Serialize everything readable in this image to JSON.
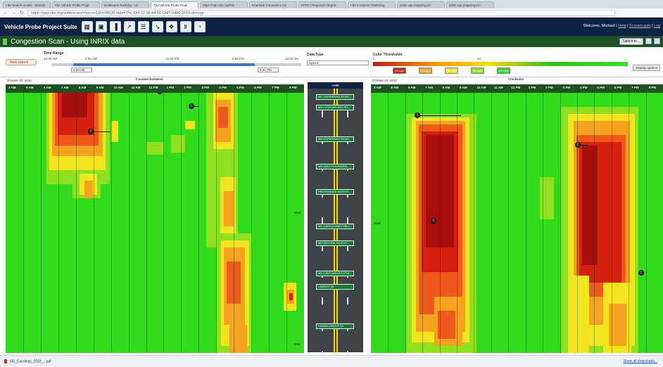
{
  "browser": {
    "tabs": [
      "I-95 Search results - patriotic",
      "The Vehicle Probe Proje",
      "Bottleneck Ranking - Ve",
      "The Vehicle Probe Proje",
      "https://vpp.ritis.org/ritis",
      "Charlotte Convention Ce",
      "RITIS | Regional Integrat",
      "I-95 Incidents Clustering",
      "pride.vpp.mapping.pro",
      "pride.vpp.mapping.pro"
    ],
    "active_tab": 3,
    "url": "https://vpp.ritis.org/suite/scan/#/tmcs=110+08536;date=Thu Oct 22 06:44:00 GMT-0400 2015;db=vpp",
    "url_secure": "https"
  },
  "appbar": {
    "title": "Vehicle Probe Project Suite",
    "welcome": "Welcome, Michael |",
    "help": "Help",
    "screencasts": "Screencasts",
    "logout": "Log",
    "tools": [
      "grid-icon",
      "map-icon",
      "bar-chart-icon",
      "line-chart-icon",
      "table-icon",
      "trend-icon",
      "puzzle-icon",
      "bars-icon",
      "gauge-icon"
    ]
  },
  "page": {
    "title": "Congestion Scan - Using INRIX data",
    "switch_to": "Switch to..."
  },
  "controls": {
    "new_search": "New search",
    "time_range_label": "Time Range",
    "time_ticks": [
      "12:00 AM",
      "6:00 AM",
      "12:00 PM",
      "6:00 PM",
      "12:00 AM"
    ],
    "start_time": "4:00 AM",
    "end_time": "8:30 PM",
    "data_type_label": "Data Type",
    "data_type_value": "Speed",
    "color_thresholds_label": "Color Thresholds",
    "threshold_min": "0",
    "threshold_max": "50",
    "threshold_chips": [
      "10 mph",
      "20 mph",
      "30 mph",
      "40 mph",
      "50 mph"
    ],
    "display_options": "Display options"
  },
  "left_panel": {
    "date": "October 22, 2015",
    "direction": "Counterclockwise",
    "times": [
      "4 AM",
      "5 AM",
      "6 AM",
      "7 AM",
      "8 AM",
      "9 AM",
      "10 AM",
      "11 AM",
      "12 PM",
      "1 PM",
      "2 PM",
      "3 PM",
      "4 PM",
      "5 PM",
      "6 PM",
      "7 PM",
      "8 PM"
    ],
    "side_label_top": "Start",
    "side_label_bottom": "End"
  },
  "right_panel": {
    "date": "October 22, 2015",
    "direction": "Clockwise",
    "times": [
      "4 AM",
      "5 AM",
      "6 AM",
      "7 AM",
      "8 AM",
      "9 AM",
      "10 AM",
      "11 AM",
      "12 PM",
      "1 PM",
      "2 PM",
      "3 PM",
      "4 PM",
      "5 PM",
      "6 PM",
      "7 PM",
      "8 PM"
    ],
    "side_label": "Start"
  },
  "road": {
    "header": "I-695",
    "signs": [
      "MD-41/PERRING PKWY...",
      "MD-147/HARFORD RD...",
      "MD-41/PERRING PKWY...",
      "MD-542/LOCH RAVEN...",
      "PROVIDENCE RD/EXIT...",
      "MD-146/DULANEY VALL...",
      "MD-45/YORK RD/EXIT...",
      "MD-139/CHARLES ST/E...",
      "I-83/EXIT 26",
      "I-83/MD-25/EXIT 23"
    ]
  },
  "colors": {
    "free": "#30db1a",
    "light": "#8fe01f",
    "yellow": "#f2e51e",
    "orange": "#f5a21e",
    "red_orange": "#ef5a1a",
    "red": "#d5200f",
    "dark_red": "#a80d0d",
    "appbar": "#0d2341",
    "titlebar": "#1e5121"
  },
  "statusbar": {
    "download_file": "I95_Carolinas_2016_...pdf",
    "show_all": "Show all downloads..."
  }
}
